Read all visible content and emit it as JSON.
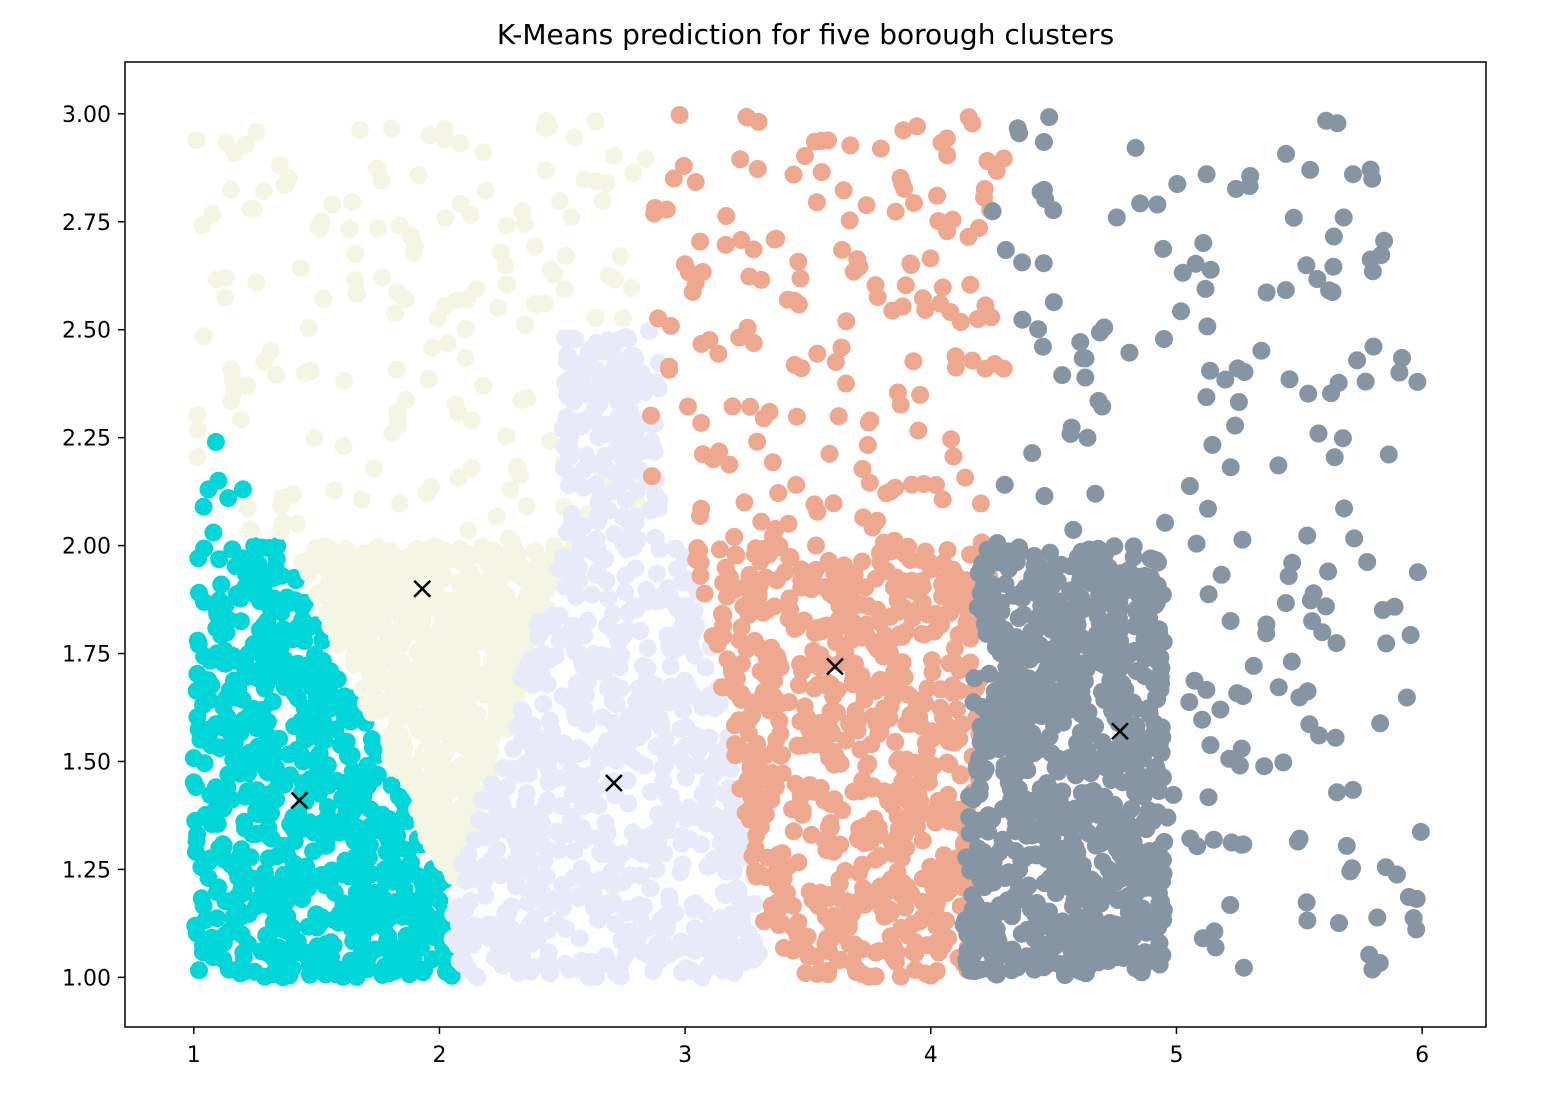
{
  "chart_data": {
    "type": "scatter",
    "title": "K-Means prediction for five borough clusters",
    "xlabel": "",
    "ylabel": "",
    "xlim": [
      0.72,
      6.26
    ],
    "ylim": [
      0.885,
      3.12
    ],
    "xticks": [
      1,
      2,
      3,
      4,
      5,
      6
    ],
    "yticks": [
      1.0,
      1.25,
      1.5,
      1.75,
      2.0,
      2.25,
      2.5,
      2.75,
      3.0
    ],
    "ytick_labels": [
      "1.00",
      "1.25",
      "1.50",
      "1.75",
      "2.00",
      "2.25",
      "2.50",
      "2.75",
      "3.00"
    ],
    "grid": false,
    "legend": "none",
    "centroid_marker": "x",
    "centroid_color": "#000000",
    "series": [
      {
        "color": "#00d5d8",
        "centroid": [
          1.43,
          1.41
        ],
        "dense_region": [
          [
            1.0,
            1.0
          ],
          [
            2.05,
            1.0
          ],
          [
            2.05,
            1.2
          ],
          [
            1.35,
            2.0
          ],
          [
            1.0,
            2.0
          ]
        ],
        "sparse_points": [
          [
            1.04,
            2.09
          ],
          [
            1.06,
            2.13
          ],
          [
            1.09,
            2.24
          ],
          [
            1.1,
            2.15
          ],
          [
            1.14,
            2.11
          ],
          [
            1.2,
            2.13
          ],
          [
            1.08,
            2.03
          ]
        ]
      },
      {
        "color": "#f5f5e4",
        "centroid": [
          1.93,
          1.9
        ],
        "dense_region": [
          [
            1.4,
            2.0
          ],
          [
            2.55,
            2.0
          ],
          [
            2.05,
            1.2
          ]
        ],
        "sparse_region": [
          [
            1.0,
            2.0
          ],
          [
            2.85,
            3.0
          ]
        ]
      },
      {
        "color": "#e9eaf9",
        "centroid": [
          2.71,
          1.45
        ],
        "dense_region": [
          [
            2.05,
            1.0
          ],
          [
            3.35,
            1.0
          ],
          [
            3.2,
            1.5
          ],
          [
            3.03,
            2.0
          ],
          [
            2.5,
            2.0
          ],
          [
            2.05,
            1.2
          ]
        ],
        "sparse_region": [
          [
            2.5,
            2.0
          ],
          [
            2.9,
            2.5
          ]
        ]
      },
      {
        "color": "#eda88f",
        "centroid": [
          3.61,
          1.72
        ],
        "dense_region": [
          [
            3.35,
            1.0
          ],
          [
            4.15,
            1.0
          ],
          [
            4.25,
            2.0
          ],
          [
            3.03,
            2.0
          ],
          [
            3.2,
            1.5
          ]
        ],
        "sparse_region": [
          [
            2.85,
            2.0
          ],
          [
            4.3,
            3.0
          ]
        ]
      },
      {
        "color": "#8695a3",
        "centroid": [
          4.77,
          1.57
        ],
        "dense_region": [
          [
            4.12,
            1.0
          ],
          [
            4.95,
            1.0
          ],
          [
            4.95,
            2.0
          ],
          [
            4.2,
            2.0
          ]
        ],
        "sparse_region": [
          [
            4.2,
            1.0
          ],
          [
            6.0,
            3.0
          ]
        ]
      }
    ]
  }
}
